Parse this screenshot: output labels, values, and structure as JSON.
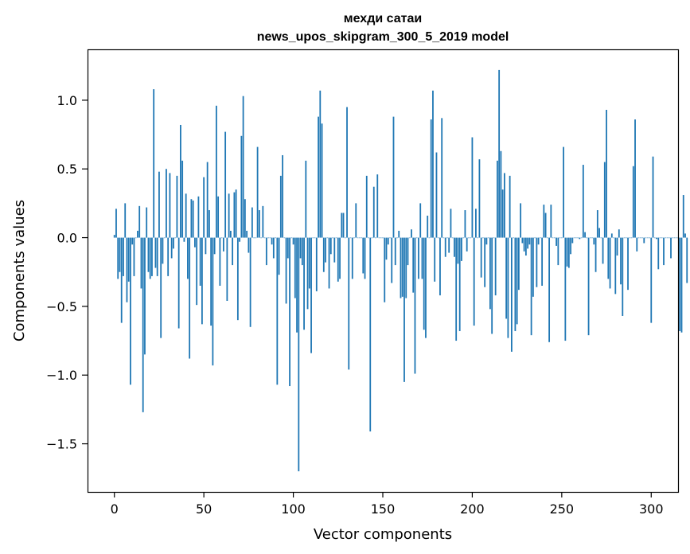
{
  "chart_data": {
    "type": "bar",
    "title": "мехди сатаи",
    "subtitle": "news_upos_skipgram_300_5_2019 model",
    "xlabel": "Vector components",
    "ylabel": "Components values",
    "xlim": [
      -15,
      315
    ],
    "ylim": [
      -1.85,
      1.37
    ],
    "xticks": [
      0,
      50,
      100,
      150,
      200,
      250,
      300
    ],
    "xtick_labels": [
      "0",
      "50",
      "100",
      "150",
      "200",
      "250",
      "300"
    ],
    "yticks": [
      -1.5,
      -1.0,
      -0.5,
      0.0,
      0.5,
      1.0
    ],
    "ytick_labels": [
      "−1.5",
      "−1.0",
      "−0.5",
      "0.0",
      "0.5",
      "1.0"
    ],
    "grid": false,
    "bar_color": "#1f77b4",
    "x_start": 0,
    "values": [
      0.02,
      0.21,
      -0.3,
      -0.25,
      -0.62,
      -0.28,
      0.25,
      -0.47,
      -0.32,
      -1.07,
      -0.05,
      -0.28,
      0.0,
      0.05,
      0.23,
      -0.37,
      -1.27,
      -0.85,
      0.22,
      -0.25,
      -0.3,
      -0.28,
      1.08,
      -0.22,
      -0.28,
      0.48,
      -0.73,
      -0.19,
      0.0,
      0.5,
      -0.28,
      0.47,
      -0.15,
      -0.08,
      0.0,
      0.45,
      -0.66,
      0.82,
      0.56,
      -0.03,
      0.32,
      -0.3,
      -0.88,
      0.28,
      0.27,
      -0.07,
      -0.49,
      0.3,
      -0.35,
      -0.63,
      0.44,
      -0.12,
      0.55,
      0.2,
      -0.64,
      -0.93,
      -0.12,
      0.96,
      0.3,
      -0.35,
      0.0,
      -0.1,
      0.77,
      -0.46,
      0.32,
      0.05,
      -0.2,
      0.33,
      0.35,
      -0.6,
      -0.03,
      0.74,
      1.03,
      0.28,
      0.05,
      -0.11,
      -0.65,
      0.22,
      0.0,
      0.0,
      0.66,
      0.2,
      0.0,
      0.23,
      0.0,
      -0.2,
      0.0,
      0.0,
      -0.05,
      -0.15,
      0.0,
      -1.07,
      -0.27,
      0.45,
      0.6,
      0.0,
      -0.48,
      -0.15,
      -1.08,
      0.0,
      -0.05,
      -0.44,
      -0.69,
      -1.7,
      -0.15,
      -0.2,
      -0.67,
      0.56,
      -0.52,
      -0.37,
      -0.84,
      0.0,
      0.0,
      -0.39,
      0.88,
      1.07,
      0.83,
      -0.25,
      -0.18,
      0.0,
      -0.37,
      -0.12,
      0.0,
      -0.18,
      0.0,
      -0.32,
      -0.3,
      0.18,
      0.18,
      0.0,
      0.95,
      -0.96,
      0.0,
      -0.3,
      0.0,
      0.25,
      0.0,
      0.0,
      0.0,
      -0.26,
      -0.3,
      0.45,
      0.0,
      -1.41,
      0.0,
      0.37,
      0.0,
      0.46,
      0.0,
      0.0,
      0.0,
      -0.47,
      -0.16,
      -0.05,
      0.0,
      -0.33,
      0.88,
      -0.2,
      0.0,
      0.05,
      -0.44,
      -0.43,
      -1.05,
      -0.44,
      -0.2,
      0.0,
      0.06,
      -0.4,
      -0.99,
      0.0,
      -0.3,
      0.25,
      -0.3,
      -0.67,
      -0.73,
      0.16,
      0.0,
      0.86,
      1.07,
      -0.32,
      0.62,
      0.0,
      -0.42,
      0.87,
      0.0,
      -0.14,
      0.0,
      -0.11,
      0.21,
      0.0,
      -0.14,
      -0.75,
      -0.19,
      -0.68,
      -0.17,
      0.0,
      0.2,
      -0.1,
      0.0,
      0.0,
      0.73,
      -0.64,
      0.21,
      0.0,
      0.57,
      -0.29,
      0.0,
      -0.36,
      -0.05,
      0.0,
      -0.52,
      -0.7,
      0.0,
      -0.42,
      0.56,
      1.22,
      0.63,
      0.35,
      0.47,
      -0.59,
      -0.73,
      0.45,
      -0.83,
      0.0,
      -0.68,
      -0.63,
      -0.38,
      0.25,
      -0.04,
      -0.1,
      -0.13,
      -0.08,
      -0.05,
      -0.71,
      -0.43,
      0.0,
      -0.36,
      -0.05,
      0.0,
      -0.35,
      0.24,
      0.18,
      0.0,
      -0.76,
      0.24,
      0.0,
      0.0,
      -0.06,
      -0.2,
      0.0,
      0.0,
      0.66,
      -0.75,
      -0.21,
      -0.22,
      -0.12,
      -0.04,
      0.0,
      0.0,
      0.0,
      -0.01,
      0.0,
      0.53,
      0.04,
      0.0,
      -0.71,
      0.0,
      0.0,
      -0.05,
      -0.25,
      0.2,
      0.07,
      0.0,
      -0.19,
      0.55,
      0.93,
      -0.3,
      -0.37,
      0.03,
      0.0,
      -0.41,
      -0.13,
      0.06,
      -0.34,
      -0.57,
      0.0,
      0.0,
      -0.38,
      0.0,
      0.0,
      0.52,
      0.86,
      -0.1,
      0.0,
      0.0,
      0.0,
      -0.04,
      0.0,
      0.0,
      0.0,
      -0.62,
      0.59,
      0.0,
      -0.01,
      -0.23,
      0.0,
      0.0,
      -0.2,
      0.0,
      0.0,
      0.0,
      -0.15,
      0.0,
      0.0,
      0.0,
      0.0,
      -0.68,
      -0.69,
      0.31,
      0.03,
      -0.33
    ]
  }
}
